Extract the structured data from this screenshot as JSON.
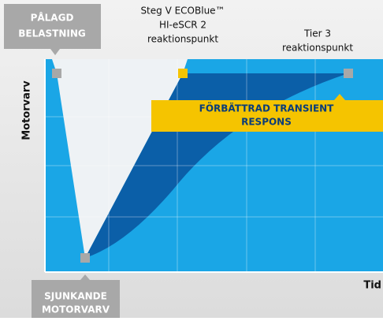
{
  "callouts": {
    "applied_load": [
      "PÅLAGD",
      "BELASTNING"
    ],
    "stage_v_point": [
      "Steg V ECOBlue™",
      "HI-eSCR 2",
      "reaktionspunkt"
    ],
    "tier3_point": [
      "Tier 3",
      "reaktionspunkt"
    ],
    "improved_response": [
      "FÖRBÄTTRAD TRANSIENT",
      "RESPONS"
    ],
    "dropping_speed": [
      "SJUNKANDE",
      "MOTORVARV"
    ]
  },
  "axes": {
    "y_label": "Motorvarv",
    "x_label": "Tid"
  }
}
